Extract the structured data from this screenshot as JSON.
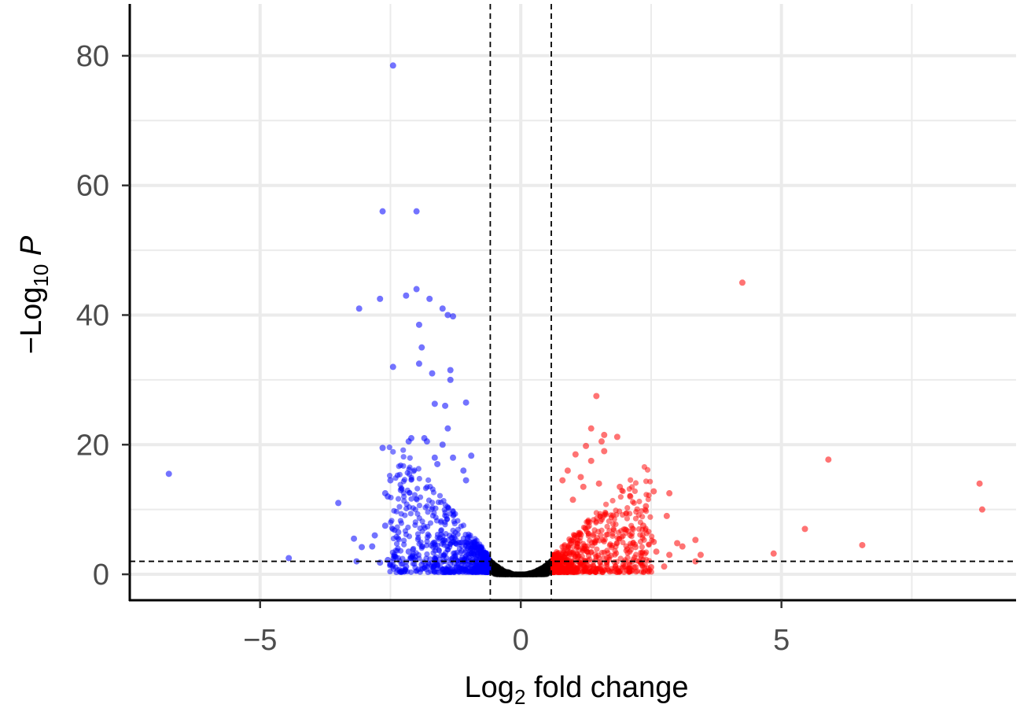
{
  "chart_data": {
    "type": "scatter",
    "title": "",
    "xlabel": {
      "prefix": "Log",
      "sub": "2",
      "suffix": " fold change"
    },
    "ylabel": {
      "prefix": "−Log",
      "sub": "10",
      "suffix": " ",
      "italic": "P"
    },
    "xlim": [
      -7.5,
      9.5
    ],
    "ylim": [
      -4,
      88
    ],
    "x_ticks": [
      -5,
      0,
      5
    ],
    "x_tick_labels": [
      "−5",
      "0",
      "5"
    ],
    "y_ticks": [
      0,
      20,
      40,
      60,
      80
    ],
    "y_tick_labels": [
      "0",
      "20",
      "40",
      "60",
      "80"
    ],
    "grid": true,
    "legend": "none",
    "thresholds": {
      "fold_change": [
        -0.585,
        0.585
      ],
      "neg_log10_p": 2
    },
    "series": [
      {
        "color": "#0000ff",
        "points": [
          [
            -2.45,
            78.5
          ],
          [
            -2.65,
            56
          ],
          [
            -2.0,
            56
          ],
          [
            -3.1,
            41
          ],
          [
            -2.7,
            42.5
          ],
          [
            -2.2,
            43
          ],
          [
            -2.0,
            44
          ],
          [
            -1.75,
            42.5
          ],
          [
            -1.5,
            41
          ],
          [
            -1.3,
            39.8
          ],
          [
            -1.4,
            40
          ],
          [
            -1.95,
            38.5
          ],
          [
            -1.9,
            35
          ],
          [
            -1.95,
            32.5
          ],
          [
            -2.45,
            32
          ],
          [
            -1.7,
            31
          ],
          [
            -1.35,
            31.5
          ],
          [
            -1.35,
            30
          ],
          [
            -1.65,
            26.3
          ],
          [
            -1.45,
            26
          ],
          [
            -1.05,
            26.5
          ],
          [
            -1.4,
            22.5
          ],
          [
            -2.1,
            21
          ],
          [
            -1.85,
            21
          ],
          [
            -2.15,
            20.5
          ],
          [
            -1.8,
            20.5
          ],
          [
            -1.5,
            20
          ],
          [
            -2.65,
            19.5
          ],
          [
            -1.65,
            18
          ],
          [
            -0.95,
            18.3
          ],
          [
            -1.3,
            18
          ],
          [
            -1.6,
            17
          ],
          [
            -1.1,
            16
          ],
          [
            -6.75,
            15.5
          ],
          [
            -2.5,
            14.5
          ],
          [
            -1.05,
            14.5
          ],
          [
            -2.3,
            13
          ],
          [
            -2.6,
            12.5
          ],
          [
            -2.55,
            12
          ],
          [
            -3.5,
            11
          ],
          [
            -3.2,
            5.5
          ],
          [
            -3.05,
            4.2
          ],
          [
            -2.85,
            4.3
          ],
          [
            -2.8,
            6
          ],
          [
            -2.6,
            7.5
          ],
          [
            -2.35,
            6.5
          ],
          [
            -3.15,
            2
          ],
          [
            -4.45,
            2.5
          ],
          [
            -2.7,
            1.8
          ],
          [
            -2.55,
            2.2
          ],
          [
            -2.15,
            3.5
          ],
          [
            -2.1,
            2.5
          ],
          [
            -2.2,
            1.2
          ],
          [
            -1.9,
            1.5
          ]
        ]
      },
      {
        "color": "#ff0000",
        "points": [
          [
            4.25,
            45
          ],
          [
            1.45,
            27.5
          ],
          [
            1.35,
            22.5
          ],
          [
            1.6,
            21.5
          ],
          [
            1.85,
            21.2
          ],
          [
            1.55,
            20.5
          ],
          [
            1.25,
            19.8
          ],
          [
            1.6,
            19
          ],
          [
            1.05,
            18.5
          ],
          [
            1.35,
            17.5
          ],
          [
            0.9,
            16
          ],
          [
            1.15,
            15
          ],
          [
            0.8,
            14.5
          ],
          [
            1.5,
            14
          ],
          [
            1.2,
            13.5
          ],
          [
            1.9,
            13.5
          ],
          [
            2.55,
            12.8
          ],
          [
            2.85,
            12.5
          ],
          [
            2.1,
            12
          ],
          [
            1.0,
            11.5
          ],
          [
            2.4,
            10.5
          ],
          [
            5.9,
            17.7
          ],
          [
            8.8,
            14
          ],
          [
            8.85,
            10
          ],
          [
            2.8,
            9
          ],
          [
            2.35,
            7.5
          ],
          [
            5.45,
            7
          ],
          [
            3.35,
            5.3
          ],
          [
            2.55,
            5
          ],
          [
            3.0,
            4.8
          ],
          [
            2.2,
            4.2
          ],
          [
            3.1,
            4.3
          ],
          [
            2.6,
            3.5
          ],
          [
            2.85,
            3
          ],
          [
            3.45,
            3
          ],
          [
            6.55,
            4.5
          ],
          [
            4.85,
            3.2
          ],
          [
            3.35,
            2
          ],
          [
            2.75,
            1.2
          ],
          [
            2.5,
            1.1
          ],
          [
            2.2,
            1.1
          ],
          [
            2.0,
            1.2
          ]
        ]
      }
    ]
  }
}
